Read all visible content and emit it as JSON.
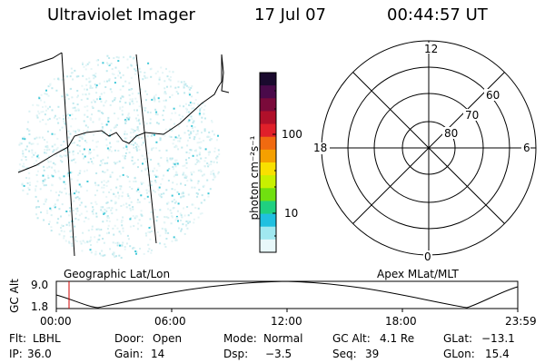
{
  "header": {
    "instrument": "Ultraviolet Imager",
    "date": "17 Jul 07",
    "time": "00:44:57 UT"
  },
  "colorbar": {
    "unit_label": "photon cm⁻²s⁻¹",
    "tick_100": "100",
    "tick_10": "10",
    "colors": [
      "#1a0a2e",
      "#4a0a4a",
      "#7a0a3a",
      "#b0102a",
      "#e0202a",
      "#f06a10",
      "#f5a000",
      "#f8e000",
      "#c8f000",
      "#70e010",
      "#20d080",
      "#20c0e0",
      "#a0e8f0",
      "#e8f8fa"
    ]
  },
  "image_panel": {
    "label": "Geographic Lat/Lon",
    "dot_color": "#40c8d8"
  },
  "polar_panel": {
    "label": "Apex MLat/MLT",
    "mlt_top": "12",
    "mlt_bottom": "0",
    "mlt_left": "18",
    "mlt_right": "6",
    "lat_60": "60",
    "lat_70": "70",
    "lat_80": "80"
  },
  "altitude_plot": {
    "ylabel": "GC Alt",
    "ytick_top": "9.0",
    "ytick_bottom": "1.8",
    "xticks": [
      "00:00",
      "06:00",
      "12:00",
      "18:00",
      "23:59"
    ],
    "marker_color": "#d00000"
  },
  "info": {
    "flt_label": "Flt:",
    "flt_value": "LBHL",
    "door_label": "Door:",
    "door_value": "Open",
    "mode_label": "Mode:",
    "mode_value": "Normal",
    "gcalt_label": "GC Alt:",
    "gcalt_value": "4.1 Re",
    "glat_label": "GLat:",
    "glat_value": "−13.1",
    "ip_label": "IP:",
    "ip_value": "36.0",
    "gain_label": "Gain:",
    "gain_value": "14",
    "dsp_label": "Dsp:",
    "dsp_value": "−3.5",
    "seq_label": "Seq:",
    "seq_value": "39",
    "glon_label": "GLon:",
    "glon_value": "15.4"
  }
}
